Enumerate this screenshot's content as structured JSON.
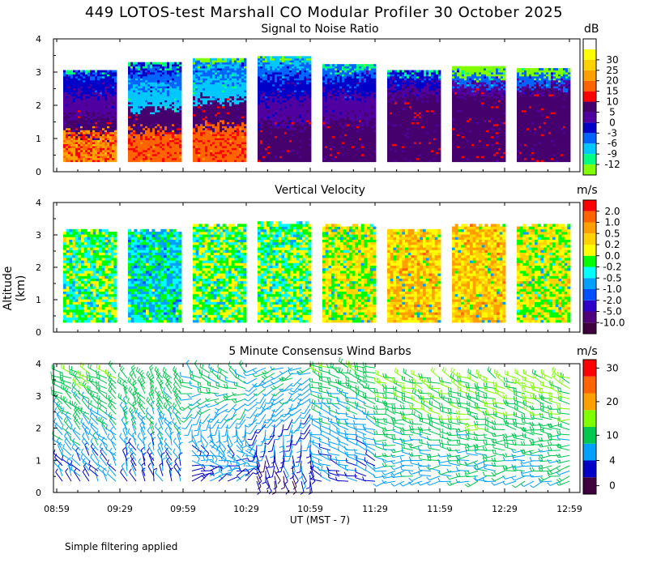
{
  "title": "449 LOTOS-test Marshall CO Modular Profiler 30 October 2025",
  "ylabel": "Altitude (km)",
  "xlabel": "UT  (MST - 7)",
  "footnote": "Simple filtering applied",
  "colors": {
    "snr": [
      "#80ff00",
      "#00ff80",
      "#00c8ff",
      "#0064ff",
      "#0000c8",
      "#5000a0",
      "#46006e",
      "#ff0000",
      "#ff6400",
      "#ffa000",
      "#ffd200",
      "#ffff00",
      "#ffffff"
    ],
    "vel": [
      "#400040",
      "#50007a",
      "#2e00c8",
      "#0050ff",
      "#00a0ff",
      "#00ffff",
      "#00ff00",
      "#ffff00",
      "#ffd200",
      "#ffa000",
      "#ff6400",
      "#ff0000"
    ],
    "wind": [
      "#400040",
      "#0000c8",
      "#00a0ff",
      "#00c850",
      "#80ff00",
      "#ffa000",
      "#ff6400",
      "#ff0000"
    ]
  },
  "chart_data": [
    {
      "type": "heatmap",
      "title": "Signal to Noise Ratio",
      "unit": "dB",
      "xlabel": "UT  (MST - 7)",
      "ylabel": "Altitude (km)",
      "ylim": [
        0,
        4
      ],
      "y_ticks": [
        "0",
        "1",
        "2",
        "3",
        "4"
      ],
      "x_tick_labels": [
        "08:59",
        "09:29",
        "09:59",
        "10:29",
        "10:59",
        "11:29",
        "11:59",
        "12:29",
        "12:59"
      ],
      "colorbar_labels": [
        "-12",
        "-9",
        "-6",
        "-3",
        "0",
        "5",
        "10",
        "15",
        "20",
        "25",
        "30"
      ],
      "segments": [
        {
          "top_km": 3.05,
          "profile": [
            [
              0.3,
              9
            ],
            [
              1.1,
              6
            ],
            [
              1.6,
              5
            ],
            [
              2.3,
              4
            ],
            [
              2.9,
              3
            ],
            [
              3.05,
              1
            ]
          ]
        },
        {
          "top_km": 3.3,
          "profile": [
            [
              0.3,
              8
            ],
            [
              1.2,
              6
            ],
            [
              1.9,
              2
            ],
            [
              2.5,
              3
            ],
            [
              3.0,
              4
            ],
            [
              3.2,
              1
            ]
          ]
        },
        {
          "top_km": 3.4,
          "profile": [
            [
              0.3,
              8
            ],
            [
              1.3,
              6
            ],
            [
              2.1,
              2
            ],
            [
              2.8,
              3
            ],
            [
              3.2,
              2
            ],
            [
              3.35,
              0
            ]
          ]
        },
        {
          "top_km": 3.5,
          "profile": [
            [
              0.3,
              6
            ],
            [
              1.4,
              5
            ],
            [
              2.2,
              4
            ],
            [
              2.8,
              3
            ],
            [
              3.2,
              2
            ],
            [
              3.45,
              0
            ]
          ]
        },
        {
          "top_km": 3.25,
          "profile": [
            [
              0.3,
              6
            ],
            [
              1.5,
              5
            ],
            [
              2.3,
              4
            ],
            [
              2.8,
              3
            ],
            [
              3.1,
              1
            ]
          ]
        },
        {
          "top_km": 3.05,
          "profile": [
            [
              0.3,
              6
            ],
            [
              2.3,
              5
            ],
            [
              2.6,
              4
            ],
            [
              2.9,
              3
            ],
            [
              3.05,
              1
            ]
          ]
        },
        {
          "top_km": 3.15,
          "profile": [
            [
              0.3,
              6
            ],
            [
              2.3,
              5
            ],
            [
              2.6,
              3
            ],
            [
              2.9,
              0
            ]
          ]
        },
        {
          "top_km": 3.1,
          "profile": [
            [
              0.3,
              6
            ],
            [
              2.4,
              5
            ],
            [
              2.6,
              3
            ],
            [
              2.9,
              0
            ]
          ]
        }
      ]
    },
    {
      "type": "heatmap",
      "title": "Vertical Velocity",
      "unit": "m/s",
      "ylim": [
        0,
        4
      ],
      "y_ticks": [
        "0",
        "1",
        "2",
        "3",
        "4"
      ],
      "x_tick_labels": [
        "08:59",
        "09:29",
        "09:59",
        "10:29",
        "10:59",
        "11:29",
        "11:59",
        "12:29",
        "12:59"
      ],
      "colorbar_labels": [
        "-10.0",
        "-5.0",
        "-2.0",
        "-1.0",
        "-0.5",
        "-0.2",
        "0.0",
        "0.2",
        "0.5",
        "1.0",
        "2.0"
      ],
      "segments": [
        {
          "top_km": 3.15,
          "dominant": "neutral-green"
        },
        {
          "top_km": 3.15,
          "dominant": "cyan-green"
        },
        {
          "top_km": 3.35,
          "dominant": "green-yellow"
        },
        {
          "top_km": 3.4,
          "dominant": "green-yellow"
        },
        {
          "top_km": 3.3,
          "dominant": "yellow-green"
        },
        {
          "top_km": 3.2,
          "dominant": "orange-yellow"
        },
        {
          "top_km": 3.35,
          "dominant": "yellow-orange"
        },
        {
          "top_km": 3.3,
          "dominant": "yellow-green"
        }
      ]
    },
    {
      "type": "scatter",
      "title": "5 Minute Consensus Wind Barbs",
      "unit": "m/s",
      "ylim": [
        0,
        4
      ],
      "y_ticks": [
        "0",
        "1",
        "2",
        "3",
        "4"
      ],
      "x_tick_labels": [
        "08:59",
        "09:29",
        "09:59",
        "10:29",
        "10:59",
        "11:29",
        "11:59",
        "12:29",
        "12:59"
      ],
      "colorbar_labels": [
        "0",
        "4",
        "10",
        "20",
        "30"
      ],
      "segments": [
        {
          "top_km": 3.8,
          "speed_low": 3,
          "speed_high": 10,
          "dir_low": 330,
          "dir_high": 300
        },
        {
          "top_km": 3.7,
          "speed_low": 3,
          "speed_high": 9,
          "dir_low": 340,
          "dir_high": 320
        },
        {
          "top_km": 3.8,
          "speed_low": 3,
          "speed_high": 8,
          "dir_low": 20,
          "dir_high": 320
        },
        {
          "top_km": 3.9,
          "speed_low": 2,
          "speed_high": 7,
          "dir_low": 150,
          "dir_high": 250
        },
        {
          "top_km": 3.9,
          "speed_low": 3,
          "speed_high": 9,
          "dir_low": 290,
          "dir_high": 290
        },
        {
          "top_km": 3.7,
          "speed_low": 5,
          "speed_high": 11,
          "dir_low": 260,
          "dir_high": 295
        },
        {
          "top_km": 3.6,
          "speed_low": 6,
          "speed_high": 11,
          "dir_low": 255,
          "dir_high": 295
        },
        {
          "top_km": 3.6,
          "speed_low": 6,
          "speed_high": 11,
          "dir_low": 250,
          "dir_high": 295
        }
      ]
    }
  ]
}
